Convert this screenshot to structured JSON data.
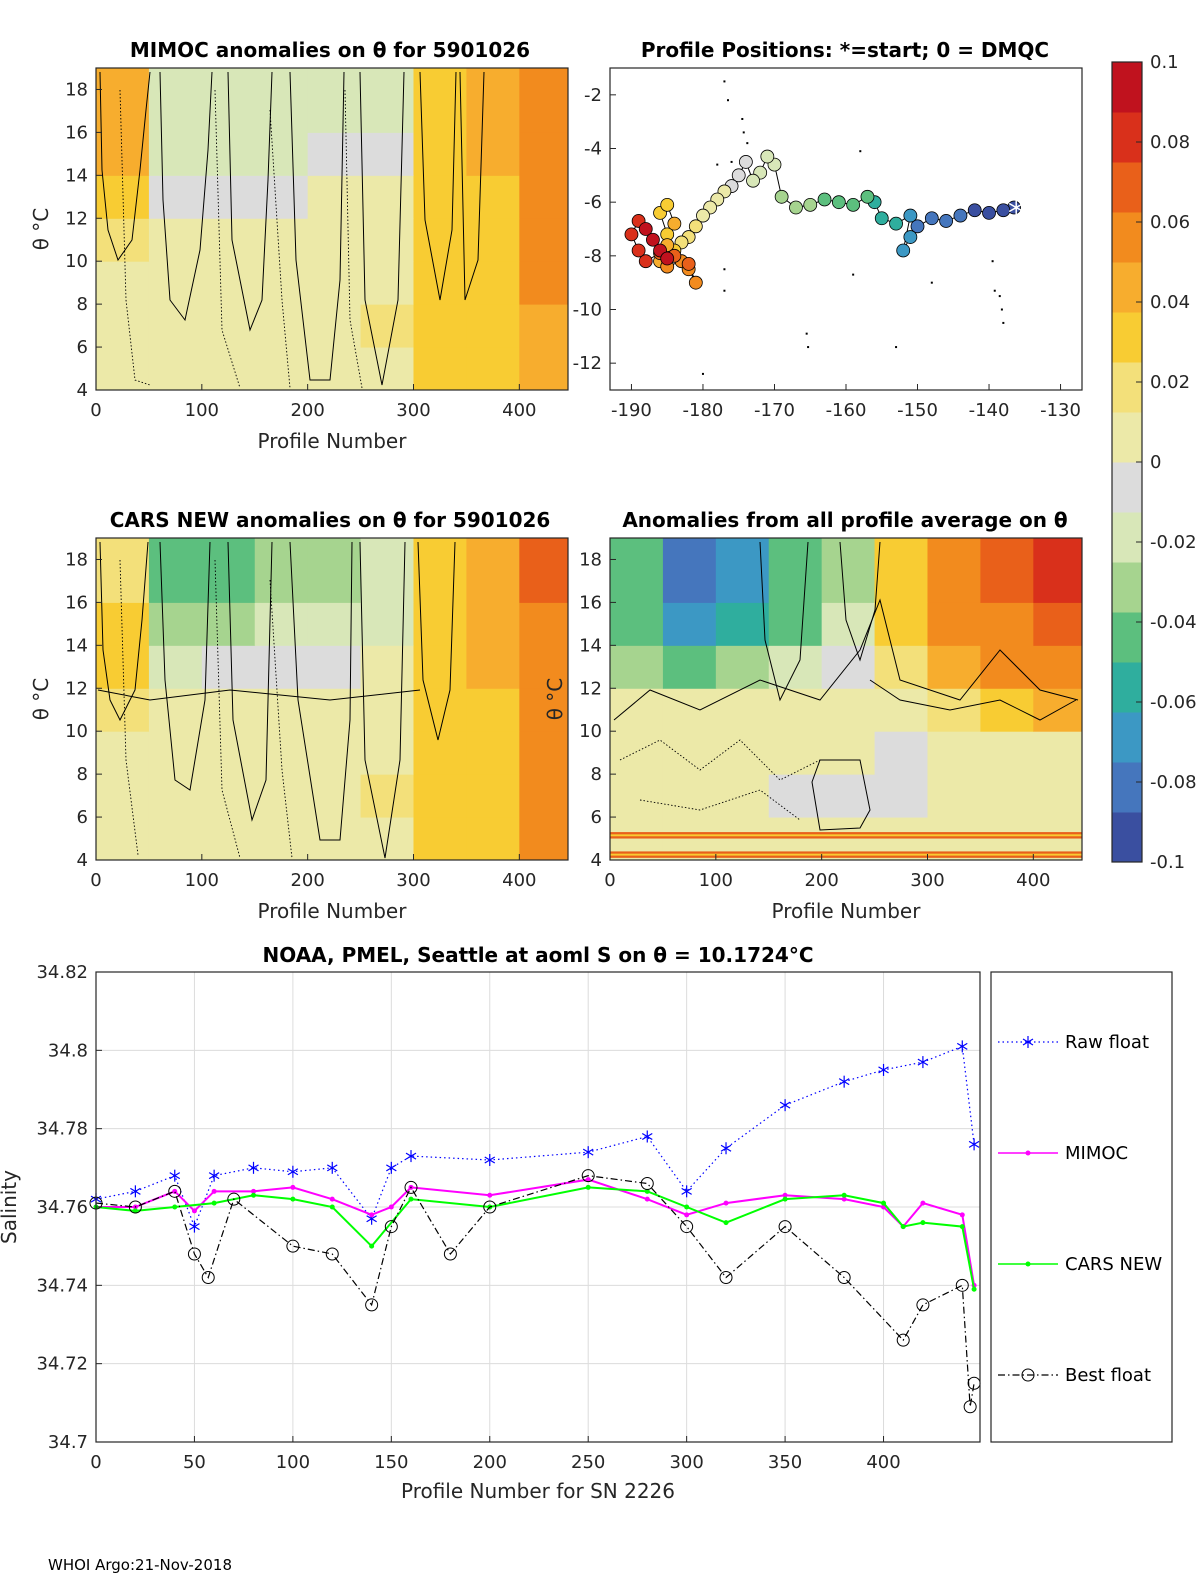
{
  "footer": "WHOI Argo:21-Nov-2018",
  "colormap": {
    "colors": [
      "#3a4fa0",
      "#4576bd",
      "#3c98c4",
      "#2fae9e",
      "#5cbf7e",
      "#a6d48f",
      "#d8e7b8",
      "#dcdcdc",
      "#ece9a8",
      "#f3e07a",
      "#f8cc33",
      "#f7ad2e",
      "#f28b1e",
      "#e9601a",
      "#d9301b",
      "#c0121e"
    ],
    "ticks": [
      "0.1",
      "0.08",
      "0.06",
      "0.04",
      "0.02",
      "0",
      "-0.02",
      "-0.04",
      "-0.06",
      "-0.08",
      "-0.1"
    ],
    "range": [
      -0.1,
      0.1
    ]
  },
  "chart_data": [
    {
      "id": "mimoc_anom",
      "type": "heatmap",
      "title": "MIMOC anomalies on θ  for 5901026",
      "xlabel": "Profile Number",
      "ylabel": "θ °C",
      "xlim": [
        0,
        446
      ],
      "ylim": [
        4,
        19
      ],
      "xticks": [
        0,
        100,
        200,
        300,
        400
      ],
      "yticks": [
        4,
        6,
        8,
        10,
        12,
        14,
        16,
        18
      ],
      "x_bins": [
        0,
        50,
        100,
        150,
        200,
        250,
        300,
        350,
        400,
        446
      ],
      "y_bins": [
        4,
        6,
        8,
        10,
        12,
        14,
        16,
        19
      ],
      "z": [
        [
          0.0,
          0.0,
          0.0,
          0.0,
          0.0,
          0.01,
          0.03,
          0.035,
          0.045
        ],
        [
          0.0,
          0.0,
          0.0,
          0.0,
          0.01,
          0.02,
          0.03,
          0.035,
          0.045
        ],
        [
          0.0,
          0.0,
          0.0,
          0.0,
          0.0,
          0.01,
          0.03,
          0.035,
          0.05
        ],
        [
          0.02,
          0.0,
          0.0,
          0.0,
          0.0,
          0.0,
          0.03,
          0.035,
          0.05
        ],
        [
          0.035,
          -0.01,
          -0.01,
          -0.01,
          0.0,
          0.0,
          0.03,
          0.035,
          0.05
        ],
        [
          0.04,
          -0.02,
          -0.02,
          -0.015,
          -0.01,
          -0.01,
          0.03,
          0.04,
          0.055
        ],
        [
          0.04,
          -0.02,
          -0.02,
          -0.02,
          -0.015,
          -0.02,
          0.03,
          0.04,
          0.06
        ]
      ]
    },
    {
      "id": "positions",
      "type": "scatter",
      "title": "Profile Positions: *=start; 0 = DMQC",
      "xlim": [
        -193,
        -127
      ],
      "ylim": [
        -13,
        -1
      ],
      "xticks": [
        -190,
        -180,
        -170,
        -160,
        -150,
        -140,
        -130
      ],
      "yticks": [
        -2,
        -4,
        -6,
        -8,
        -10,
        -12
      ],
      "track": [
        [
          -136.5,
          -6.2
        ],
        [
          -138,
          -6.3
        ],
        [
          -140,
          -6.4
        ],
        [
          -142,
          -6.3
        ],
        [
          -144,
          -6.5
        ],
        [
          -146,
          -6.7
        ],
        [
          -148,
          -6.6
        ],
        [
          -150,
          -6.9
        ],
        [
          -151,
          -7.3
        ],
        [
          -152,
          -7.8
        ],
        [
          -151,
          -6.5
        ],
        [
          -153,
          -6.8
        ],
        [
          -155,
          -6.6
        ],
        [
          -156,
          -6.0
        ],
        [
          -157,
          -5.8
        ],
        [
          -159,
          -6.1
        ],
        [
          -161,
          -6.0
        ],
        [
          -163,
          -5.9
        ],
        [
          -165,
          -6.1
        ],
        [
          -167,
          -6.2
        ],
        [
          -169,
          -5.8
        ],
        [
          -170,
          -4.6
        ],
        [
          -171,
          -4.3
        ],
        [
          -172,
          -4.9
        ],
        [
          -173,
          -5.2
        ],
        [
          -174,
          -4.5
        ],
        [
          -175,
          -5.0
        ],
        [
          -176,
          -5.4
        ],
        [
          -177,
          -5.6
        ],
        [
          -178,
          -5.9
        ],
        [
          -179,
          -6.2
        ],
        [
          -180,
          -6.5
        ],
        [
          -181,
          -6.9
        ],
        [
          -182,
          -7.3
        ],
        [
          -183,
          -7.5
        ],
        [
          -184,
          -7.8
        ],
        [
          -185,
          -7.2
        ],
        [
          -186,
          -6.4
        ],
        [
          -185,
          -6.1
        ],
        [
          -184,
          -6.8
        ],
        [
          -185,
          -7.6
        ],
        [
          -186,
          -8.2
        ],
        [
          -185,
          -8.4
        ],
        [
          -183,
          -8.2
        ],
        [
          -182,
          -8.5
        ],
        [
          -181,
          -9.0
        ],
        [
          -182,
          -8.3
        ],
        [
          -184,
          -8.0
        ],
        [
          -186,
          -7.9
        ],
        [
          -188,
          -8.2
        ],
        [
          -189,
          -7.8
        ],
        [
          -190,
          -7.2
        ],
        [
          -189,
          -6.7
        ],
        [
          -188,
          -7.0
        ],
        [
          -187,
          -7.4
        ],
        [
          -186,
          -7.8
        ],
        [
          -185,
          -8.1
        ]
      ],
      "color_start": -0.1,
      "color_end": 0.1,
      "start_marker": [
        -136.2,
        -6.2
      ],
      "dmqc_points": [
        [
          -177,
          -1.5
        ],
        [
          -176.5,
          -2.2
        ],
        [
          -174.5,
          -2.9
        ],
        [
          -174.3,
          -3.4
        ],
        [
          -173.8,
          -3.8
        ],
        [
          -176,
          -4.5
        ],
        [
          -178,
          -4.6
        ],
        [
          -158,
          -4.1
        ],
        [
          -177,
          -8.5
        ],
        [
          -177,
          -9.3
        ],
        [
          -165.5,
          -10.9
        ],
        [
          -165.3,
          -11.4
        ],
        [
          -159,
          -8.7
        ],
        [
          -153,
          -11.4
        ],
        [
          -148,
          -9.0
        ],
        [
          -139.5,
          -8.2
        ],
        [
          -139.2,
          -9.3
        ],
        [
          -138.5,
          -9.5
        ],
        [
          -138.2,
          -10.0
        ],
        [
          -138.0,
          -10.5
        ],
        [
          -180,
          -12.4
        ]
      ]
    },
    {
      "id": "cars_anom",
      "type": "heatmap",
      "title": "CARS NEW anomalies on θ for 5901026",
      "xlabel": "Profile Number",
      "ylabel": "θ °C",
      "xlim": [
        0,
        446
      ],
      "ylim": [
        4,
        19
      ],
      "xticks": [
        0,
        100,
        200,
        300,
        400
      ],
      "yticks": [
        4,
        6,
        8,
        10,
        12,
        14,
        16,
        18
      ],
      "x_bins": [
        0,
        50,
        100,
        150,
        200,
        250,
        300,
        350,
        400,
        446
      ],
      "y_bins": [
        4,
        6,
        8,
        10,
        12,
        14,
        16,
        19
      ],
      "z": [
        [
          0.0,
          0.0,
          0.0,
          0.0,
          0.0,
          0.01,
          0.03,
          0.035,
          0.05
        ],
        [
          0.0,
          0.0,
          0.0,
          0.0,
          0.0,
          0.02,
          0.03,
          0.035,
          0.05
        ],
        [
          0.0,
          0.0,
          0.0,
          0.0,
          0.0,
          0.01,
          0.03,
          0.035,
          0.05
        ],
        [
          0.02,
          0.0,
          0.0,
          0.0,
          0.0,
          0.0,
          0.03,
          0.035,
          0.055
        ],
        [
          0.035,
          -0.015,
          -0.01,
          -0.01,
          -0.01,
          0.0,
          0.03,
          0.04,
          0.055
        ],
        [
          0.03,
          -0.035,
          -0.03,
          -0.025,
          -0.02,
          -0.02,
          0.03,
          0.04,
          0.06
        ],
        [
          0.02,
          -0.045,
          -0.04,
          -0.03,
          -0.03,
          -0.025,
          0.035,
          0.045,
          0.07
        ]
      ]
    },
    {
      "id": "avg_anom",
      "type": "heatmap",
      "title": "Anomalies from all profile average on θ",
      "xlabel": "Profile Number",
      "ylabel": "θ °C",
      "xlim": [
        0,
        446
      ],
      "ylim": [
        4,
        19
      ],
      "xticks": [
        0,
        100,
        200,
        300,
        400
      ],
      "yticks": [
        4,
        6,
        8,
        10,
        12,
        14,
        16,
        18
      ],
      "x_bins": [
        0,
        50,
        100,
        150,
        200,
        250,
        300,
        350,
        400,
        446
      ],
      "y_bins": [
        4,
        6,
        8,
        10,
        12,
        14,
        16,
        19
      ],
      "z": [
        [
          0.0,
          0.0,
          0.0,
          0.0,
          0.0,
          0.0,
          0.0,
          0.0,
          0.0
        ],
        [
          0.0,
          0.0,
          0.0,
          -0.01,
          -0.01,
          -0.01,
          0.0,
          0.0,
          0.0
        ],
        [
          0.0,
          0.0,
          0.0,
          0.0,
          0.0,
          -0.01,
          0.0,
          0.0,
          0.01
        ],
        [
          0.0,
          0.0,
          0.0,
          0.0,
          0.0,
          0.0,
          0.02,
          0.03,
          0.04
        ],
        [
          -0.03,
          -0.04,
          -0.03,
          -0.02,
          -0.01,
          0.02,
          0.04,
          0.05,
          0.06
        ],
        [
          -0.05,
          -0.07,
          -0.06,
          -0.04,
          -0.02,
          0.03,
          0.05,
          0.06,
          0.065
        ],
        [
          -0.05,
          -0.08,
          -0.07,
          -0.05,
          -0.03,
          0.03,
          0.05,
          0.065,
          0.08
        ]
      ],
      "artifact_bands": [
        [
          4.1,
          4.4
        ],
        [
          5.0,
          5.3
        ]
      ]
    },
    {
      "id": "salinity",
      "type": "line",
      "title": "NOAA, PMEL, Seattle at aoml S on θ = 10.1724°C",
      "xlabel": "Profile Number for SN 2226",
      "ylabel": "Salinity",
      "xlim": [
        0,
        449
      ],
      "ylim": [
        34.7,
        34.82
      ],
      "xticks": [
        0,
        50,
        100,
        150,
        200,
        250,
        300,
        350,
        400
      ],
      "yticks": [
        34.7,
        34.72,
        34.74,
        34.76,
        34.78,
        34.8,
        34.82
      ],
      "yticklabels": [
        "34.7",
        "34.72",
        "34.74",
        "34.76",
        "34.78",
        "34.8",
        "34.82"
      ],
      "grid": true,
      "series": [
        {
          "name": "Raw float",
          "color": "#0000ff",
          "marker": "star",
          "line": "dotted",
          "x": [
            0,
            20,
            40,
            50,
            60,
            80,
            100,
            120,
            140,
            150,
            160,
            200,
            250,
            280,
            300,
            320,
            350,
            380,
            400,
            420,
            440,
            446
          ],
          "y": [
            34.762,
            34.764,
            34.768,
            34.755,
            34.768,
            34.77,
            34.769,
            34.77,
            34.757,
            34.77,
            34.773,
            34.772,
            34.774,
            34.778,
            34.764,
            34.775,
            34.786,
            34.792,
            34.795,
            34.797,
            34.801,
            34.776
          ]
        },
        {
          "name": "MIMOC",
          "color": "#ff00ff",
          "marker": "dot",
          "line": "solid",
          "x": [
            0,
            20,
            40,
            50,
            60,
            80,
            100,
            120,
            140,
            150,
            160,
            200,
            250,
            280,
            300,
            320,
            350,
            380,
            400,
            410,
            420,
            440,
            446
          ],
          "y": [
            34.76,
            34.76,
            34.764,
            34.759,
            34.764,
            34.764,
            34.765,
            34.762,
            34.758,
            34.76,
            34.765,
            34.763,
            34.767,
            34.762,
            34.758,
            34.761,
            34.763,
            34.762,
            34.76,
            34.755,
            34.761,
            34.758,
            34.74
          ]
        },
        {
          "name": "CARS NEW",
          "color": "#00ff00",
          "marker": "dot",
          "line": "solid",
          "x": [
            0,
            20,
            40,
            60,
            80,
            100,
            120,
            140,
            160,
            200,
            250,
            280,
            300,
            320,
            350,
            380,
            400,
            410,
            420,
            440,
            446
          ],
          "y": [
            34.76,
            34.759,
            34.76,
            34.761,
            34.763,
            34.762,
            34.76,
            34.75,
            34.762,
            34.76,
            34.765,
            34.764,
            34.76,
            34.756,
            34.762,
            34.763,
            34.761,
            34.755,
            34.756,
            34.755,
            34.739
          ]
        },
        {
          "name": "Best float",
          "color": "#000000",
          "marker": "circle",
          "line": "dashdot",
          "x": [
            0,
            20,
            40,
            50,
            57,
            70,
            100,
            120,
            140,
            150,
            160,
            180,
            200,
            250,
            280,
            300,
            320,
            350,
            380,
            410,
            420,
            440,
            444,
            446
          ],
          "y": [
            34.761,
            34.76,
            34.764,
            34.748,
            34.742,
            34.762,
            34.75,
            34.748,
            34.735,
            34.755,
            34.765,
            34.748,
            34.76,
            34.768,
            34.766,
            34.755,
            34.742,
            34.755,
            34.742,
            34.726,
            34.735,
            34.74,
            34.709,
            34.715
          ]
        }
      ]
    }
  ]
}
